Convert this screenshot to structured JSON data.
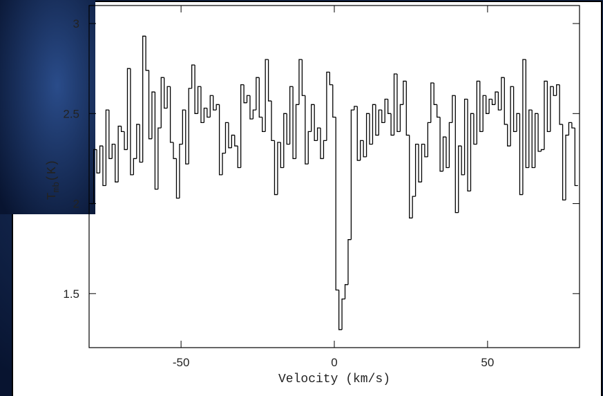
{
  "chart_data": {
    "type": "step",
    "xlabel": "Velocity (km/s)",
    "ylabel": {
      "main": "T",
      "sub": "mb",
      "unit": "(K)"
    },
    "xlim": [
      -80,
      80
    ],
    "ylim": [
      1.2,
      3.1
    ],
    "xticks": [
      -50,
      0,
      50
    ],
    "yticks": [
      1.5,
      2,
      2.5,
      3
    ],
    "color": "#000000",
    "x": [
      -79,
      -78,
      -77,
      -76,
      -75,
      -74,
      -73,
      -72,
      -71,
      -70,
      -69,
      -68,
      -67,
      -66,
      -65,
      -64,
      -63,
      -62,
      -61,
      -60,
      -59,
      -58,
      -57,
      -56,
      -55,
      -54,
      -53,
      -52,
      -51,
      -50,
      -49,
      -48,
      -47,
      -46,
      -45,
      -44,
      -43,
      -42,
      -41,
      -40,
      -39,
      -38,
      -37,
      -36,
      -35,
      -34,
      -33,
      -32,
      -31,
      -30,
      -29,
      -28,
      -27,
      -26,
      -25,
      -24,
      -23,
      -22,
      -21,
      -20,
      -19,
      -18,
      -17,
      -16,
      -15,
      -14,
      -13,
      -12,
      -11,
      -10,
      -9,
      -8,
      -7,
      -6,
      -5,
      -4,
      -3,
      -2,
      -1,
      0,
      1,
      2,
      3,
      4,
      5,
      6,
      7,
      8,
      9,
      10,
      11,
      12,
      13,
      14,
      15,
      16,
      17,
      18,
      19,
      20,
      21,
      22,
      23,
      24,
      25,
      26,
      27,
      28,
      29,
      30,
      31,
      32,
      33,
      34,
      35,
      36,
      37,
      38,
      39,
      40,
      41,
      42,
      43,
      44,
      45,
      46,
      47,
      48,
      49,
      50,
      51,
      52,
      53,
      54,
      55,
      56,
      57,
      58,
      59,
      60,
      61,
      62,
      63,
      64,
      65,
      66,
      67,
      68,
      69,
      70,
      71,
      72,
      73,
      74,
      75,
      76,
      77,
      78,
      79
    ],
    "values": [
      2.0,
      2.3,
      2.17,
      2.32,
      2.1,
      2.52,
      2.25,
      2.33,
      2.12,
      2.43,
      2.4,
      2.3,
      2.75,
      2.16,
      2.25,
      2.44,
      2.23,
      2.93,
      2.74,
      2.36,
      2.62,
      2.08,
      2.42,
      2.7,
      2.53,
      2.65,
      2.34,
      2.25,
      2.03,
      2.33,
      2.52,
      2.22,
      2.64,
      2.77,
      2.5,
      2.65,
      2.45,
      2.53,
      2.48,
      2.6,
      2.52,
      2.55,
      2.16,
      2.28,
      2.45,
      2.31,
      2.38,
      2.32,
      2.2,
      2.66,
      2.56,
      2.6,
      2.47,
      2.52,
      2.7,
      2.48,
      2.4,
      2.8,
      2.57,
      2.35,
      2.05,
      2.34,
      2.2,
      2.5,
      2.33,
      2.65,
      2.25,
      2.55,
      2.8,
      2.6,
      2.22,
      2.4,
      2.55,
      2.35,
      2.42,
      2.25,
      2.35,
      2.73,
      2.66,
      2.48,
      1.52,
      1.3,
      1.47,
      1.55,
      1.8,
      2.52,
      2.54,
      2.24,
      2.35,
      2.26,
      2.5,
      2.33,
      2.55,
      2.38,
      2.52,
      2.45,
      2.58,
      2.5,
      2.38,
      2.72,
      2.4,
      2.55,
      2.68,
      2.38,
      1.92,
      2.04,
      2.33,
      2.12,
      2.33,
      2.26,
      2.45,
      2.67,
      2.55,
      2.48,
      2.18,
      2.37,
      2.2,
      2.45,
      2.6,
      1.95,
      2.32,
      2.16,
      2.58,
      2.07,
      2.5,
      2.33,
      2.68,
      2.4,
      2.6,
      2.5,
      2.58,
      2.55,
      2.62,
      2.52,
      2.7,
      2.44,
      2.32,
      2.65,
      2.4,
      2.5,
      2.05,
      2.8,
      2.2,
      2.52,
      2.2,
      2.5,
      2.29,
      2.3,
      2.68,
      2.4,
      2.65,
      2.6,
      2.66,
      2.44,
      2.02,
      2.38,
      2.45,
      2.42,
      2.1
    ]
  }
}
